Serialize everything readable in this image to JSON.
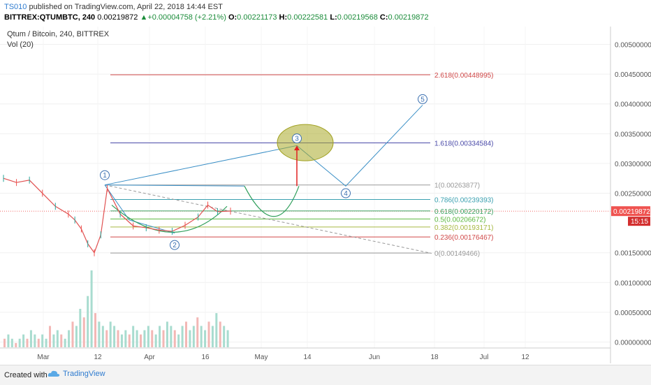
{
  "header": {
    "author": "TS010",
    "published": " published on TradingView.com, April 22, 2018 14:44 EST",
    "symbol": "BITTREX:QTUMBTC, 240",
    "last": "0.00219872",
    "change": "▲+0.00004758 (+2.21%)",
    "o_label": "O:",
    "o": "0.00221173",
    "h_label": "H:",
    "h": "0.00222581",
    "l_label": "L:",
    "l": "0.00219568",
    "c_label": "C:",
    "c": "0.00219872"
  },
  "footer": {
    "created": "Created with",
    "brand": "TradingView"
  },
  "chart_data": {
    "type": "line",
    "title": "Qtum / Bitcoin, 240, BITTREX",
    "indicator": "Vol (20)",
    "x_ticks": [
      "Mar",
      "12",
      "Apr",
      "16",
      "May",
      "14",
      "Jun",
      "18",
      "Jul",
      "12"
    ],
    "y_ticks": [
      "0.00500000",
      "0.00450000",
      "0.00400000",
      "0.00350000",
      "0.00300000",
      "0.00250000",
      "0.00150000",
      "0.00100000",
      "0.00050000",
      "0.00000000"
    ],
    "last_price_label": "0.00219872",
    "countdown_label": "15:15",
    "ylim": [
      -0.0001,
      0.0053
    ],
    "price": {
      "x": [
        0,
        4,
        8,
        12,
        16,
        20,
        22,
        24,
        26,
        28,
        30,
        32,
        36,
        40,
        44,
        48,
        52,
        56,
        60,
        63,
        66,
        70
      ],
      "y": [
        0.00275,
        0.00268,
        0.00272,
        0.0025,
        0.00228,
        0.00215,
        0.00205,
        0.0019,
        0.00165,
        0.0015,
        0.0018,
        0.00258,
        0.00215,
        0.00195,
        0.00192,
        0.00188,
        0.00186,
        0.00196,
        0.0021,
        0.0023,
        0.00219,
        0.0022
      ]
    },
    "fib_levels": [
      {
        "ratio": "2.618",
        "value": 0.00448995,
        "label": "2.618(0.00448995)",
        "color": "#d04848"
      },
      {
        "ratio": "1.618",
        "value": 0.00334584,
        "label": "1.618(0.00334584)",
        "color": "#4a4aa8"
      },
      {
        "ratio": "1",
        "value": 0.00263877,
        "label": "1(0.00263877)",
        "color": "#999999"
      },
      {
        "ratio": "0.786",
        "value": 0.00239393,
        "label": "0.786(0.00239393)",
        "color": "#3aa0b0"
      },
      {
        "ratio": "0.618",
        "value": 0.00220172,
        "label": "0.618(0.00220172)",
        "color": "#3aa060"
      },
      {
        "ratio": "0.5",
        "value": 0.00206672,
        "label": "0.5(0.00206672)",
        "color": "#5cb840"
      },
      {
        "ratio": "0.382",
        "value": 0.00193171,
        "label": "0.382(0.00193171)",
        "color": "#a6b840"
      },
      {
        "ratio": "0.236",
        "value": 0.00176467,
        "label": "0.236(0.00176467)",
        "color": "#d04848"
      },
      {
        "ratio": "0",
        "value": 0.00149466,
        "label": "0(0.00149466)",
        "color": "#999999"
      }
    ],
    "wave_labels": [
      "1",
      "2",
      "3",
      "4",
      "5"
    ],
    "volume": [
      2,
      3,
      2,
      1,
      2,
      3,
      2,
      4,
      3,
      2,
      3,
      2,
      5,
      3,
      4,
      3,
      2,
      4,
      6,
      5,
      9,
      7,
      12,
      18,
      8,
      6,
      5,
      4,
      6,
      5,
      4,
      3,
      4,
      3,
      5,
      4,
      3,
      4,
      5,
      4,
      3,
      5,
      4,
      6,
      5,
      4,
      3,
      5,
      6,
      4,
      5,
      7,
      5,
      4,
      6,
      5,
      8,
      6,
      5,
      4
    ]
  }
}
